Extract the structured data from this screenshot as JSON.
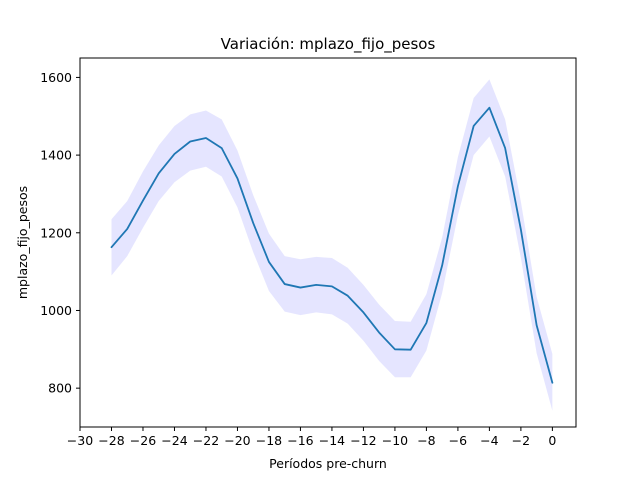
{
  "chart_data": {
    "type": "line",
    "title": "Variación: mplazo_fijo_pesos",
    "xlabel": "Períodos pre-churn",
    "ylabel": "mplazo_fijo_pesos",
    "xlim": [
      -30,
      1.5
    ],
    "ylim": [
      700,
      1650
    ],
    "x_ticks": [
      -30,
      -28,
      -26,
      -24,
      -22,
      -20,
      -18,
      -16,
      -14,
      -12,
      -10,
      -8,
      -6,
      -4,
      -2,
      0
    ],
    "x_tick_labels": [
      "−30",
      "−28",
      "−26",
      "−24",
      "−22",
      "−20",
      "−18",
      "−16",
      "−14",
      "−12",
      "−10",
      "−8",
      "−6",
      "−4",
      "−2",
      "0"
    ],
    "y_ticks": [
      800,
      1000,
      1200,
      1400,
      1600
    ],
    "y_tick_labels": [
      "800",
      "1000",
      "1200",
      "1400",
      "1600"
    ],
    "grid": false,
    "series": [
      {
        "color": "#1f77b4",
        "band_color": "#0000ff",
        "x": [
          -28,
          -27,
          -26,
          -25,
          -24,
          -23,
          -22,
          -21,
          -20,
          -19,
          -18,
          -17,
          -16,
          -15,
          -14,
          -13,
          -12,
          -11,
          -10,
          -9,
          -8,
          -7,
          -6,
          -5,
          -4,
          -3,
          -2,
          -1,
          0
        ],
        "values": [
          1163,
          1210,
          1283,
          1353,
          1403,
          1435,
          1444,
          1418,
          1340,
          1225,
          1125,
          1068,
          1059,
          1066,
          1062,
          1038,
          995,
          943,
          900,
          899,
          968,
          1116,
          1320,
          1475,
          1522,
          1418,
          1208,
          962,
          814
        ],
        "lower": [
          1090,
          1140,
          1213,
          1282,
          1330,
          1360,
          1370,
          1345,
          1265,
          1150,
          1050,
          997,
          988,
          995,
          990,
          966,
          922,
          870,
          828,
          828,
          897,
          1045,
          1245,
          1400,
          1448,
          1345,
          1135,
          890,
          742
        ],
        "upper": [
          1235,
          1282,
          1358,
          1425,
          1475,
          1505,
          1515,
          1492,
          1412,
          1297,
          1198,
          1140,
          1132,
          1138,
          1135,
          1110,
          1066,
          1015,
          973,
          971,
          1042,
          1188,
          1395,
          1547,
          1595,
          1492,
          1280,
          1035,
          888
        ]
      }
    ]
  }
}
